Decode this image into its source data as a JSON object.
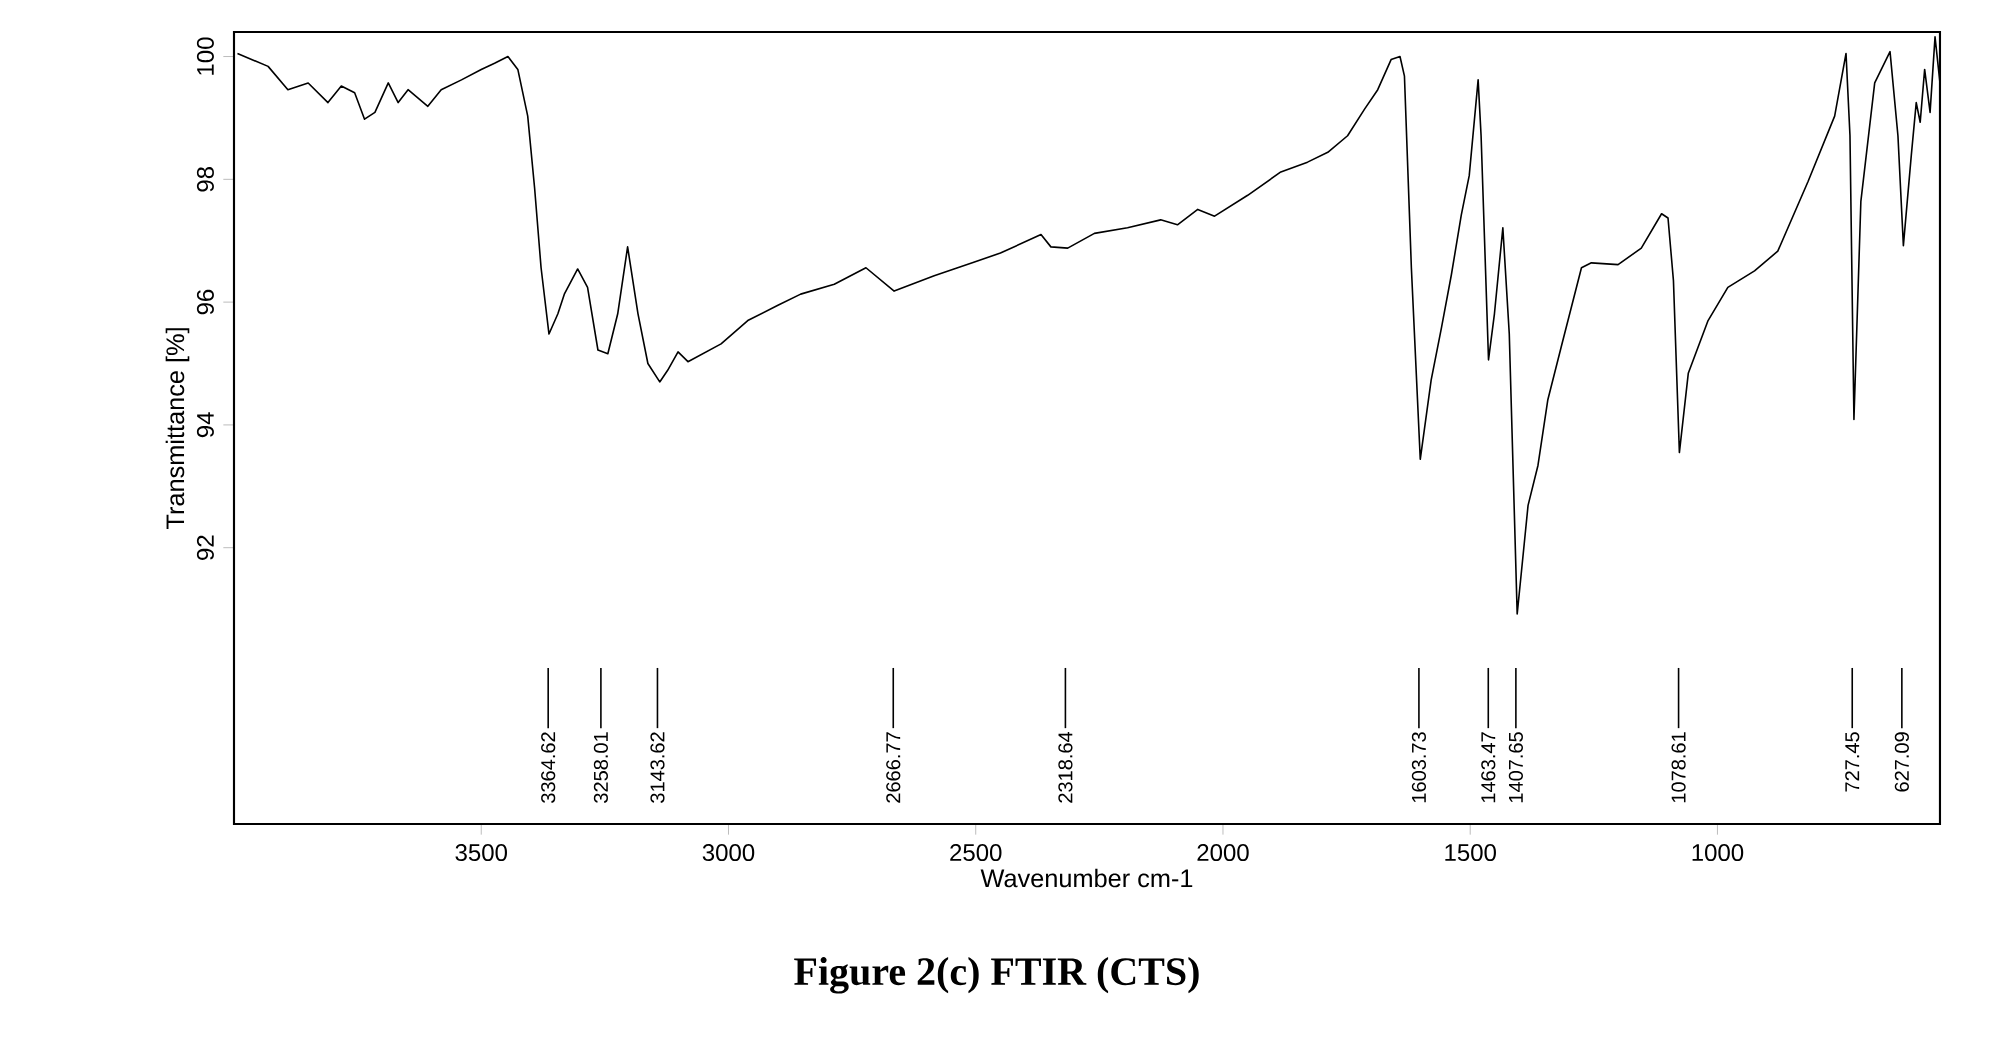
{
  "chart_data": {
    "type": "line",
    "xlabel": "Wavenumber cm-1",
    "ylabel": "Transmittance [%]",
    "color": "#000000",
    "x": [
      3993,
      3931,
      3891,
      3850,
      3810,
      3783,
      3756,
      3736,
      3715,
      3688,
      3668,
      3648,
      3608,
      3581,
      3540,
      3500,
      3473,
      3446,
      3426,
      3406,
      3392,
      3379,
      3363,
      3345,
      3332,
      3305,
      3285,
      3264,
      3244,
      3224,
      3204,
      3183,
      3163,
      3139,
      3123,
      3102,
      3082,
      3015,
      2961,
      2900,
      2854,
      2786,
      2722,
      2665,
      2584,
      2504,
      2450,
      2368,
      2348,
      2314,
      2260,
      2193,
      2126,
      2092,
      2051,
      2017,
      1950,
      1883,
      1829,
      1788,
      1748,
      1714,
      1687,
      1660,
      1642,
      1633,
      1619,
      1601,
      1579,
      1558,
      1538,
      1518,
      1502,
      1484,
      1478,
      1463,
      1451,
      1434,
      1421,
      1405,
      1383,
      1363,
      1343,
      1316,
      1275,
      1255,
      1201,
      1154,
      1113,
      1100,
      1089,
      1077,
      1059,
      1019,
      979,
      925,
      878,
      817,
      763,
      740,
      732,
      724,
      710,
      682,
      651,
      635,
      624,
      608,
      598,
      590,
      581,
      570,
      560,
      550
    ],
    "values": [
      100.05,
      99.84,
      99.46,
      99.57,
      99.25,
      99.52,
      99.41,
      98.98,
      99.09,
      99.57,
      99.25,
      99.46,
      99.19,
      99.46,
      99.62,
      99.79,
      99.89,
      100.0,
      99.79,
      99.03,
      97.85,
      96.56,
      95.48,
      95.81,
      96.13,
      96.54,
      96.24,
      95.22,
      95.16,
      95.81,
      96.9,
      95.81,
      95.0,
      94.7,
      94.89,
      95.19,
      95.03,
      95.32,
      95.7,
      95.95,
      96.13,
      96.29,
      96.56,
      96.18,
      96.43,
      96.65,
      96.8,
      97.1,
      96.9,
      96.88,
      97.12,
      97.21,
      97.34,
      97.26,
      97.51,
      97.4,
      97.74,
      98.12,
      98.28,
      98.44,
      98.71,
      99.14,
      99.46,
      99.95,
      100.0,
      99.68,
      96.56,
      93.44,
      94.73,
      95.59,
      96.45,
      97.42,
      98.06,
      99.62,
      98.71,
      95.06,
      95.81,
      97.21,
      95.48,
      90.92,
      92.69,
      93.34,
      94.41,
      95.27,
      96.56,
      96.64,
      96.61,
      96.88,
      97.44,
      97.37,
      96.35,
      93.55,
      94.84,
      95.7,
      96.24,
      96.51,
      96.83,
      97.96,
      99.03,
      100.05,
      98.71,
      94.09,
      97.64,
      99.57,
      100.08,
      98.71,
      96.92,
      98.39,
      99.25,
      98.93,
      99.79,
      99.09,
      100.32,
      99.57
    ],
    "xlim": [
      4000,
      550
    ],
    "ylim": [
      87.5,
      100.4
    ],
    "xticks": [
      3500,
      3000,
      2500,
      2000,
      1500,
      1000
    ],
    "yticks": [
      92,
      94,
      96,
      98,
      100
    ],
    "grid": false,
    "marker": "none",
    "line_style": "solid",
    "annotations": [
      {
        "text": "3364.62",
        "x": 3364.62
      },
      {
        "text": "3258.01",
        "x": 3258.01
      },
      {
        "text": "3143.62",
        "x": 3143.62
      },
      {
        "text": "2666.77",
        "x": 2666.77
      },
      {
        "text": "2318.64",
        "x": 2318.64
      },
      {
        "text": "1603.73",
        "x": 1603.73
      },
      {
        "text": "1463.47",
        "x": 1463.47
      },
      {
        "text": "1407.65",
        "x": 1407.65
      },
      {
        "text": "1078.61",
        "x": 1078.61
      },
      {
        "text": "727.45",
        "x": 727.45
      },
      {
        "text": "627.09",
        "x": 627.09
      },
      "Figure 2(c) FTIR (CTS)"
    ]
  }
}
